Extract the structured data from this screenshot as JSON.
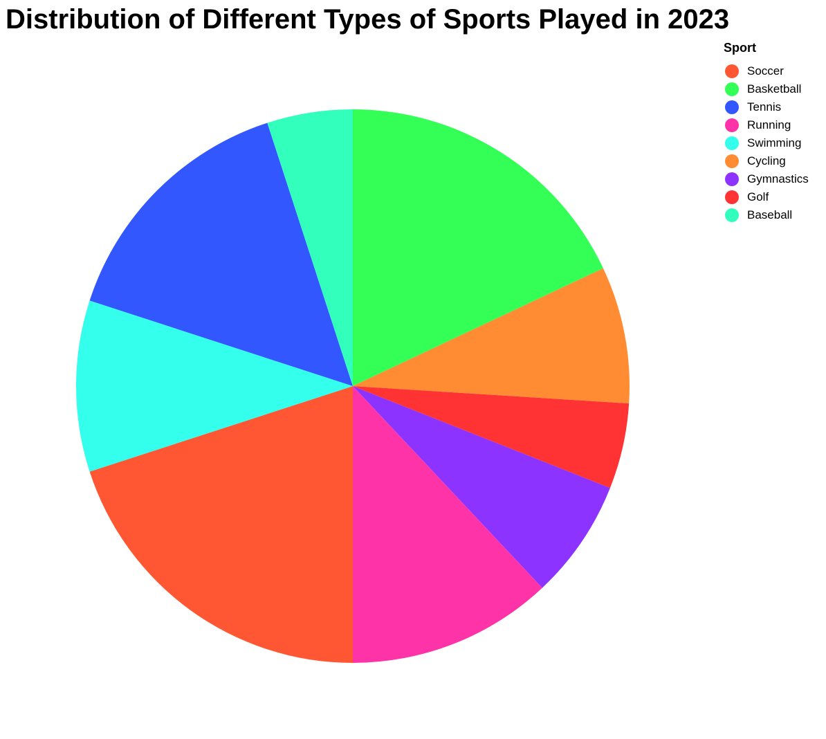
{
  "chart_data": {
    "type": "pie",
    "title": "Distribution of Different Types of Sports Played in 2023",
    "legend": {
      "title": "Sport",
      "placement": "top-right"
    },
    "slices": [
      {
        "label": "Basketball",
        "value": 18,
        "color": "#33FF57"
      },
      {
        "label": "Cycling",
        "value": 8,
        "color": "#FF8C33"
      },
      {
        "label": "Golf",
        "value": 5,
        "color": "#FF3333"
      },
      {
        "label": "Gymnastics",
        "value": 7,
        "color": "#8C33FF"
      },
      {
        "label": "Running",
        "value": 12,
        "color": "#FF33A8"
      },
      {
        "label": "Soccer",
        "value": 20,
        "color": "#FF5733"
      },
      {
        "label": "Swimming",
        "value": 10,
        "color": "#33FFEC"
      },
      {
        "label": "Tennis",
        "value": 15,
        "color": "#3357FF"
      },
      {
        "label": "Baseball",
        "value": 5,
        "color": "#33FFBD"
      }
    ],
    "legend_order": [
      "Soccer",
      "Basketball",
      "Tennis",
      "Running",
      "Swimming",
      "Cycling",
      "Gymnastics",
      "Golf",
      "Baseball"
    ]
  }
}
